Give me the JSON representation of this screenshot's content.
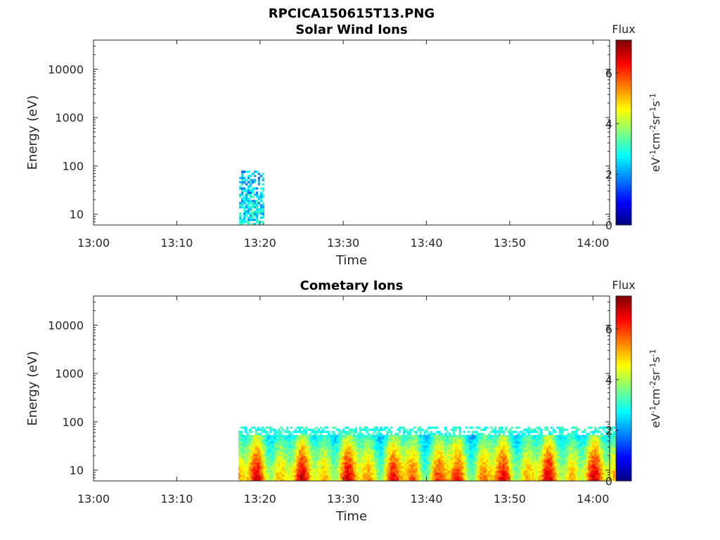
{
  "figure_title": "RPCICA150615T13.PNG",
  "colors": {
    "colormap": [
      "#00007f",
      "#0000ff",
      "#007fff",
      "#00ffff",
      "#7fff7f",
      "#ffff00",
      "#ff7f00",
      "#ff0000",
      "#7f0000"
    ]
  },
  "chart_data": [
    {
      "type": "heatmap",
      "title": "Solar Wind Ions",
      "xlabel": "Time",
      "ylabel": "Energy (eV)",
      "x_ticks": [
        "13:00",
        "13:10",
        "13:20",
        "13:30",
        "13:40",
        "13:50",
        "14:00"
      ],
      "y_ticks": [
        "10",
        "100",
        "1000",
        "10000"
      ],
      "y_scale": "log",
      "xlim": [
        "13:00",
        "14:02"
      ],
      "ylim": [
        6,
        40000
      ],
      "colorbar": {
        "title": "Flux",
        "label": "eV-1cm-2sr-1s-1",
        "ticks": [
          "0",
          "2",
          "4",
          "6"
        ],
        "range": [
          0,
          7.3
        ]
      },
      "signal": {
        "time_start_min": 17.5,
        "time_end_min": 20.5,
        "energy_max_ev": 80,
        "flux_level": 2.8
      }
    },
    {
      "type": "heatmap",
      "title": "Cometary Ions",
      "xlabel": "Time",
      "ylabel": "Energy (eV)",
      "x_ticks": [
        "13:00",
        "13:10",
        "13:20",
        "13:30",
        "13:40",
        "13:50",
        "14:00"
      ],
      "y_ticks": [
        "10",
        "100",
        "1000",
        "10000"
      ],
      "y_scale": "log",
      "xlim": [
        "13:00",
        "14:02"
      ],
      "ylim": [
        6,
        40000
      ],
      "colorbar": {
        "title": "Flux",
        "label": "eV-1cm-2sr-1s-1",
        "ticks": [
          "0",
          "2",
          "4",
          "6"
        ],
        "range": [
          0,
          7.3
        ]
      },
      "signal": {
        "time_start_min": 17.4,
        "time_end_min": 62.5,
        "energy_max_ev": 80,
        "flux_level": 6.5
      }
    }
  ]
}
